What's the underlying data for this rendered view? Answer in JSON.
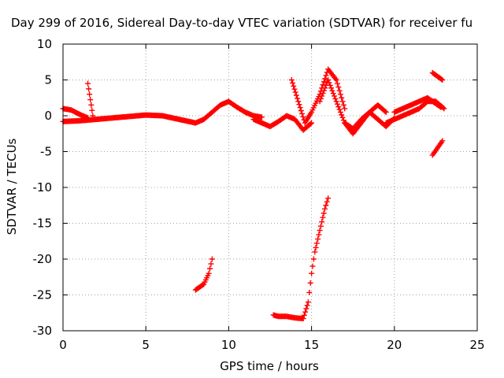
{
  "chart_data": {
    "type": "scatter",
    "title": "Day 299 of 2016, Sidereal Day-to-day VTEC variation (SDTVAR) for receiver fu",
    "xlabel": "GPS time / hours",
    "ylabel": "SDTVAR / TECUs",
    "xlim": [
      0,
      25
    ],
    "ylim": [
      -30,
      10
    ],
    "xticks": [
      0,
      5,
      10,
      15,
      20,
      25
    ],
    "yticks": [
      10,
      5,
      0,
      -5,
      -10,
      -15,
      -20,
      -25,
      -30
    ],
    "grid": true,
    "marker": "plus",
    "series_color": "#ff0000",
    "series": [
      {
        "x": [
          0,
          1,
          2,
          3,
          4,
          5,
          6,
          7,
          8,
          8.5
        ],
        "y": [
          -0.8,
          -0.7,
          -0.5,
          -0.3,
          -0.1,
          0.1,
          0.0,
          -0.5,
          -1.0,
          -0.5
        ]
      },
      {
        "x": [
          0,
          0.5,
          1,
          1.5
        ],
        "y": [
          1.0,
          0.8,
          0.2,
          -0.3
        ]
      },
      {
        "x": [
          1.5,
          1.6,
          1.7,
          1.8
        ],
        "y": [
          4.5,
          3.0,
          1.5,
          0.0
        ]
      },
      {
        "x": [
          8.5,
          9,
          9.5,
          10,
          10.5,
          11,
          11.5,
          12
        ],
        "y": [
          -0.5,
          0.5,
          1.5,
          2.0,
          1.2,
          0.5,
          0.0,
          -0.2
        ]
      },
      {
        "x": [
          11.5,
          12,
          12.5,
          13,
          13.5,
          14,
          14.5,
          15
        ],
        "y": [
          -0.5,
          -1.0,
          -1.5,
          -0.8,
          0.0,
          -0.5,
          -2.0,
          -1.0
        ]
      },
      {
        "x": [
          13.8,
          14.2,
          14.6,
          15.0,
          15.5,
          16.0,
          16.5,
          17.0
        ],
        "y": [
          5.0,
          2.0,
          -1.0,
          0.5,
          3.0,
          6.5,
          5.0,
          1.0
        ]
      },
      {
        "x": [
          15.5,
          16.0,
          16.5,
          17.0,
          17.5,
          18.0,
          18.5,
          19.0,
          19.5
        ],
        "y": [
          2.0,
          5.0,
          2.0,
          -1.0,
          -2.5,
          -1.0,
          0.5,
          1.5,
          0.5
        ]
      },
      {
        "x": [
          17.0,
          17.5,
          18.0,
          18.5,
          19.0,
          19.5,
          20.0
        ],
        "y": [
          -1.0,
          -1.8,
          -0.5,
          0.5,
          -0.5,
          -1.5,
          -0.3
        ]
      },
      {
        "x": [
          19.5,
          20.0,
          20.5,
          21.0,
          21.5,
          22.0,
          22.5,
          23.0
        ],
        "y": [
          -1.0,
          -0.5,
          0.0,
          0.5,
          1.0,
          2.0,
          2.0,
          1.0
        ]
      },
      {
        "x": [
          20.0,
          21.0,
          22.0,
          22.8
        ],
        "y": [
          0.5,
          1.5,
          2.5,
          1.2
        ]
      },
      {
        "x": [
          22.3,
          22.6,
          22.9
        ],
        "y": [
          6.0,
          5.5,
          5.0
        ]
      },
      {
        "x": [
          22.3,
          22.6,
          22.9
        ],
        "y": [
          -5.5,
          -4.5,
          -3.5
        ]
      },
      {
        "x": [
          8.0,
          8.5,
          8.8,
          9.0
        ],
        "y": [
          -24.3,
          -23.5,
          -22.0,
          -20.0
        ]
      },
      {
        "x": [
          12.7,
          13.0,
          13.5,
          14.0,
          14.5,
          14.8,
          15.0,
          15.2,
          15.5,
          15.8,
          16.0
        ],
        "y": [
          -27.8,
          -28.0,
          -28.0,
          -28.2,
          -28.3,
          -26.0,
          -22.0,
          -19.0,
          -16.0,
          -13.0,
          -11.5
        ]
      }
    ]
  }
}
